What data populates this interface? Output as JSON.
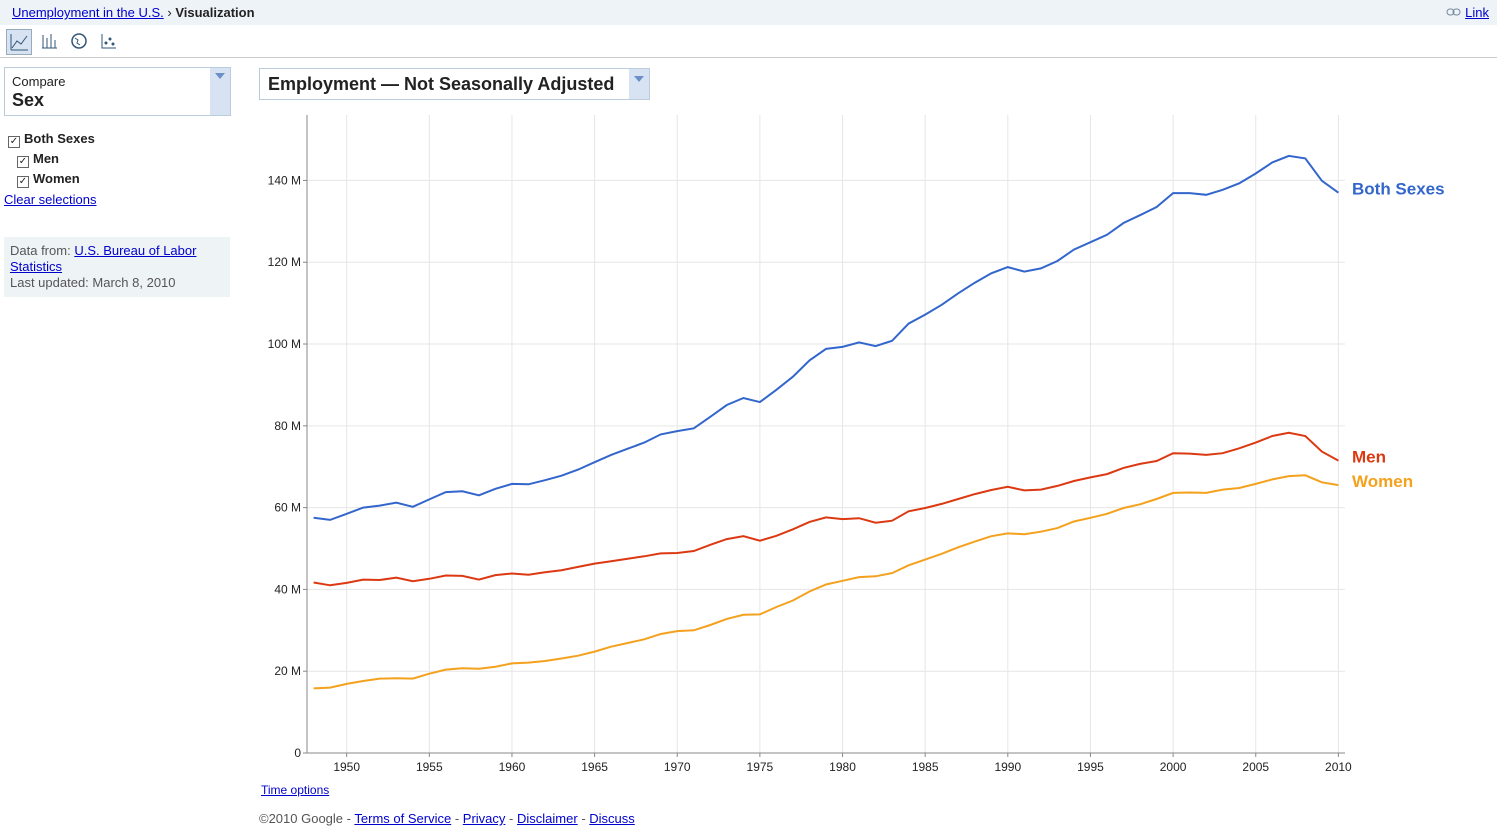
{
  "header": {
    "breadcrumb": "Unemployment in the U.S.",
    "separator": "›",
    "current": "Visualization",
    "link": "Link"
  },
  "sidebar": {
    "compare_label": "Compare",
    "compare_value": "Sex",
    "options": [
      "Both Sexes",
      "Men",
      "Women"
    ],
    "clear": "Clear selections",
    "source_label": "Data from:",
    "source_link": "U.S. Bureau of Labor Statistics",
    "updated": "Last updated: March 8, 2010"
  },
  "time_options": "Time options",
  "footer": {
    "copyright": "©2010 Google",
    "separator": "-",
    "links": [
      "Terms of Service",
      "Privacy",
      "Disclaimer",
      "Discuss"
    ]
  },
  "chart_data": {
    "type": "line",
    "title": "Employment — Not Seasonally Adjusted",
    "x": [
      1948,
      1949,
      1950,
      1951,
      1952,
      1953,
      1954,
      1955,
      1956,
      1957,
      1958,
      1959,
      1960,
      1961,
      1962,
      1963,
      1964,
      1965,
      1966,
      1967,
      1968,
      1969,
      1970,
      1971,
      1972,
      1973,
      1974,
      1975,
      1976,
      1977,
      1978,
      1979,
      1980,
      1981,
      1982,
      1983,
      1984,
      1985,
      1986,
      1987,
      1988,
      1989,
      1990,
      1991,
      1992,
      1993,
      1994,
      1995,
      1996,
      1997,
      1998,
      1999,
      2000,
      2001,
      2002,
      2003,
      2004,
      2005,
      2006,
      2007,
      2008,
      2009,
      2010
    ],
    "series": [
      {
        "name": "Both Sexes",
        "color": "#3366cc",
        "values": [
          57.5,
          57,
          58.5,
          60,
          60.5,
          61.2,
          60.2,
          62,
          63.8,
          64,
          63,
          64.6,
          65.8,
          65.7,
          66.7,
          67.8,
          69.3,
          71.1,
          72.9,
          74.4,
          75.9,
          77.9,
          78.7,
          79.4,
          82.2,
          85.1,
          86.8,
          85.8,
          88.8,
          92,
          96,
          98.8,
          99.3,
          100.4,
          99.5,
          100.8,
          105,
          107.2,
          109.6,
          112.4,
          115,
          117.3,
          118.8,
          117.7,
          118.5,
          120.3,
          123.1,
          124.9,
          126.7,
          129.6,
          131.5,
          133.5,
          136.9,
          136.9,
          136.5,
          137.7,
          139.3,
          141.7,
          144.4,
          146,
          145.4,
          139.9,
          137
        ]
      },
      {
        "name": "Men",
        "color": "#dc3912",
        "values": [
          41.7,
          41,
          41.6,
          42.4,
          42.3,
          42.9,
          42,
          42.6,
          43.4,
          43.3,
          42.4,
          43.5,
          43.9,
          43.6,
          44.2,
          44.7,
          45.5,
          46.3,
          46.9,
          47.5,
          48.1,
          48.8,
          48.9,
          49.4,
          50.9,
          52.3,
          53,
          51.9,
          53.1,
          54.7,
          56.5,
          57.6,
          57.2,
          57.4,
          56.3,
          56.8,
          59.1,
          59.9,
          60.9,
          62.1,
          63.3,
          64.3,
          65.1,
          64.2,
          64.4,
          65.3,
          66.5,
          67.4,
          68.2,
          69.7,
          70.7,
          71.4,
          73.3,
          73.2,
          72.9,
          73.3,
          74.5,
          75.9,
          77.5,
          78.3,
          77.5,
          73.7,
          71.5
        ]
      },
      {
        "name": "Women",
        "color": "#f4a11d",
        "values": [
          15.8,
          16,
          16.9,
          17.6,
          18.2,
          18.3,
          18.2,
          19.4,
          20.4,
          20.7,
          20.6,
          21.1,
          21.9,
          22.1,
          22.5,
          23.1,
          23.8,
          24.8,
          26,
          26.9,
          27.8,
          29.1,
          29.8,
          30,
          31.3,
          32.8,
          33.8,
          33.9,
          35.7,
          37.3,
          39.5,
          41.2,
          42.1,
          43,
          43.2,
          44,
          45.9,
          47.3,
          48.7,
          50.3,
          51.7,
          53,
          53.7,
          53.5,
          54.1,
          55,
          56.6,
          57.5,
          58.5,
          59.9,
          60.8,
          62.1,
          63.6,
          63.7,
          63.6,
          64.4,
          64.8,
          65.8,
          66.9,
          67.7,
          67.9,
          66.2,
          65.5
        ]
      }
    ],
    "xlim": [
      1947.6,
      2010.4
    ],
    "xticks": [
      1950,
      1955,
      1960,
      1965,
      1970,
      1975,
      1980,
      1985,
      1990,
      1995,
      2000,
      2005,
      2010
    ],
    "ylim": [
      0,
      156
    ],
    "yticks": [
      0,
      {
        "value": 20,
        "label": "20 M"
      },
      {
        "value": 40,
        "label": "40 M"
      },
      {
        "value": 60,
        "label": "60 M"
      },
      {
        "value": 80,
        "label": "80 M"
      },
      {
        "value": 100,
        "label": "100 M"
      },
      {
        "value": 120,
        "label": "120 M"
      },
      {
        "value": 140,
        "label": "140 M"
      }
    ],
    "grid": true
  }
}
